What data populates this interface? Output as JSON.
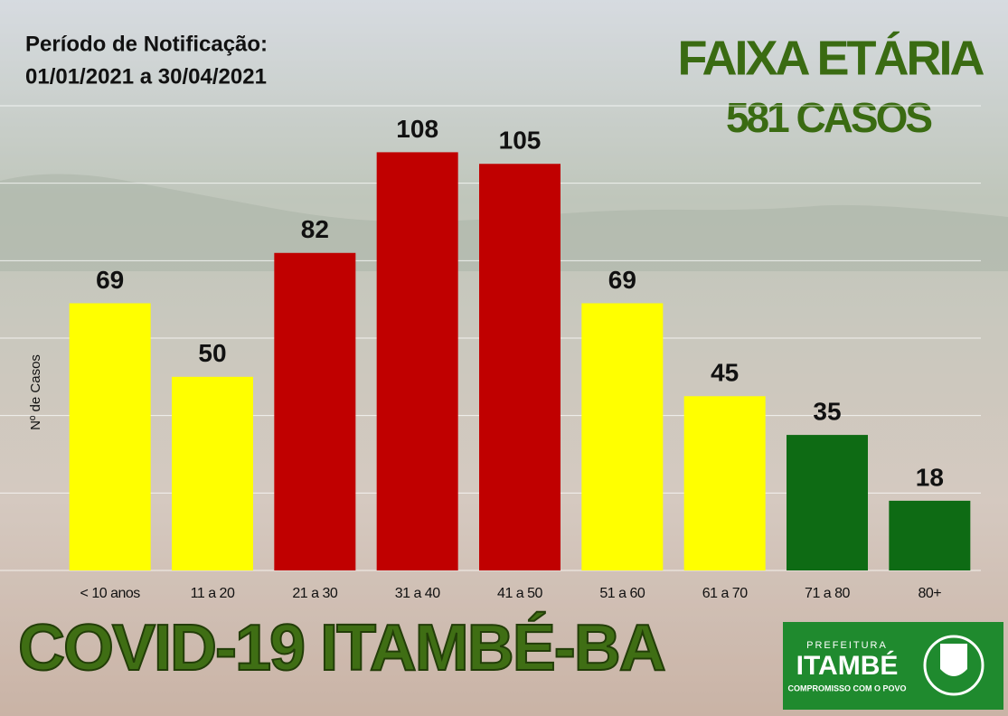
{
  "chart_data": {
    "type": "bar",
    "title": "FAIXA ETÁRIA",
    "subtitle": "581 CASOS",
    "period_label": "Período de Notificação:",
    "period": "01/01/2021 a 30/04/2021",
    "y_label": "Nº de Casos",
    "categories": [
      "< 10 anos",
      "11 a 20",
      "21 a 30",
      "31 a 40",
      "41 a 50",
      "51 a 60",
      "61 a 70",
      "71 a 80",
      "80+"
    ],
    "values": [
      69,
      50,
      82,
      108,
      105,
      69,
      45,
      35,
      18
    ],
    "colors": [
      "#ffff00",
      "#ffff00",
      "#c00000",
      "#c00000",
      "#c00000",
      "#ffff00",
      "#ffff00",
      "#0e6b14",
      "#0e6b14"
    ],
    "ylim": [
      0,
      120
    ],
    "yticks": [
      0,
      20,
      40,
      60,
      80,
      100,
      120
    ],
    "grid": true,
    "footer": "COVID-19  ITAMBÉ-BA"
  },
  "logo": {
    "top": "PREFEITURA",
    "name": "ITAMBÉ",
    "motto": "COMPROMISSO COM O POVO"
  }
}
